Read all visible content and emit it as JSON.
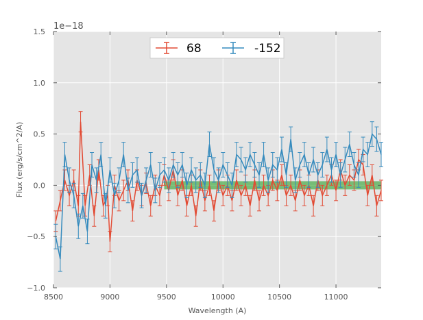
{
  "chart_data": {
    "type": "line",
    "xlabel": "Wavelength (A)",
    "ylabel": "Flux (erg/s/cm^2/A)",
    "offset_label": "1e−18",
    "xlim": [
      8500,
      11400
    ],
    "ylim": [
      -1.0,
      1.5
    ],
    "xticks": [
      8500,
      9000,
      9500,
      10000,
      10500,
      11000
    ],
    "yticks": [
      -1.0,
      -0.5,
      0.0,
      0.5,
      1.0,
      1.5
    ],
    "ytick_labels": [
      "−1.0",
      "−0.5",
      "0.0",
      "0.5",
      "1.0",
      "1.5"
    ],
    "grid": true,
    "legend_position": "top-center",
    "band": {
      "x": [
        9480,
        11400
      ],
      "y": [
        -0.04,
        0.04
      ],
      "color": "#2ca02c"
    },
    "series": [
      {
        "name": "68",
        "color": "#e24a33",
        "x": [
          8520,
          8560,
          8600,
          8640,
          8680,
          8720,
          8740,
          8780,
          8820,
          8860,
          8900,
          8940,
          8980,
          9000,
          9040,
          9080,
          9120,
          9160,
          9200,
          9240,
          9280,
          9320,
          9360,
          9400,
          9440,
          9480,
          9520,
          9560,
          9600,
          9640,
          9680,
          9720,
          9760,
          9800,
          9840,
          9880,
          9920,
          9960,
          10000,
          10040,
          10080,
          10120,
          10160,
          10200,
          10240,
          10280,
          10320,
          10360,
          10400,
          10440,
          10480,
          10520,
          10560,
          10600,
          10640,
          10680,
          10720,
          10760,
          10800,
          10840,
          10880,
          10920,
          10960,
          11000,
          11040,
          11080,
          11120,
          11160,
          11200,
          11240,
          11280,
          11320,
          11360,
          11400
        ],
        "y": [
          -0.35,
          -0.15,
          0.05,
          -0.1,
          0.05,
          -0.2,
          0.62,
          -0.2,
          0.1,
          -0.3,
          0.15,
          -0.2,
          -0.1,
          -0.55,
          0.0,
          -0.15,
          -0.05,
          0.05,
          -0.25,
          0.05,
          -0.1,
          0.02,
          -0.2,
          0.0,
          -0.1,
          0.1,
          -0.05,
          0.15,
          -0.1,
          0.05,
          -0.2,
          0.0,
          -0.3,
          0.05,
          -0.15,
          0.0,
          -0.25,
          0.05,
          -0.1,
          0.0,
          -0.15,
          0.05,
          -0.1,
          0.0,
          -0.2,
          0.05,
          -0.15,
          0.0,
          -0.1,
          0.05,
          -0.05,
          0.1,
          -0.1,
          0.0,
          -0.15,
          0.05,
          -0.1,
          0.0,
          -0.2,
          0.05,
          -0.1,
          0.0,
          0.1,
          -0.05,
          0.15,
          0.0,
          0.1,
          0.05,
          0.25,
          0.2,
          -0.1,
          0.1,
          -0.2,
          -0.05
        ],
        "err": 0.1
      },
      {
        "name": "-152",
        "color": "#348abd",
        "x": [
          8520,
          8560,
          8600,
          8640,
          8680,
          8720,
          8760,
          8800,
          8840,
          8880,
          8920,
          8960,
          9000,
          9040,
          9080,
          9120,
          9160,
          9200,
          9240,
          9280,
          9320,
          9360,
          9400,
          9440,
          9480,
          9520,
          9560,
          9600,
          9640,
          9680,
          9720,
          9760,
          9800,
          9840,
          9880,
          9920,
          9960,
          10000,
          10040,
          10080,
          10120,
          10160,
          10200,
          10240,
          10280,
          10320,
          10360,
          10400,
          10440,
          10480,
          10520,
          10560,
          10600,
          10640,
          10680,
          10720,
          10760,
          10800,
          10840,
          10880,
          10920,
          10960,
          11000,
          11040,
          11080,
          11120,
          11160,
          11200,
          11240,
          11280,
          11320,
          11360,
          11400
        ],
        "y": [
          -0.5,
          -0.72,
          0.3,
          0.05,
          -0.1,
          -0.4,
          -0.2,
          -0.45,
          0.2,
          0.05,
          0.3,
          -0.2,
          0.15,
          -0.1,
          0.05,
          0.3,
          -0.05,
          0.1,
          0.15,
          -0.1,
          0.05,
          0.2,
          -0.05,
          0.1,
          0.15,
          0.05,
          0.2,
          0.1,
          0.2,
          0.0,
          0.15,
          0.05,
          0.1,
          0.0,
          0.4,
          0.15,
          0.05,
          0.2,
          0.1,
          0.0,
          0.3,
          0.25,
          0.15,
          0.3,
          0.2,
          0.1,
          0.3,
          0.05,
          0.2,
          0.15,
          0.35,
          0.1,
          0.45,
          0.05,
          0.2,
          0.3,
          0.1,
          0.25,
          0.1,
          0.2,
          0.35,
          0.15,
          0.3,
          0.1,
          0.25,
          0.4,
          0.2,
          0.1,
          0.35,
          0.3,
          0.5,
          0.45,
          0.3
        ],
        "err": 0.12
      }
    ]
  }
}
